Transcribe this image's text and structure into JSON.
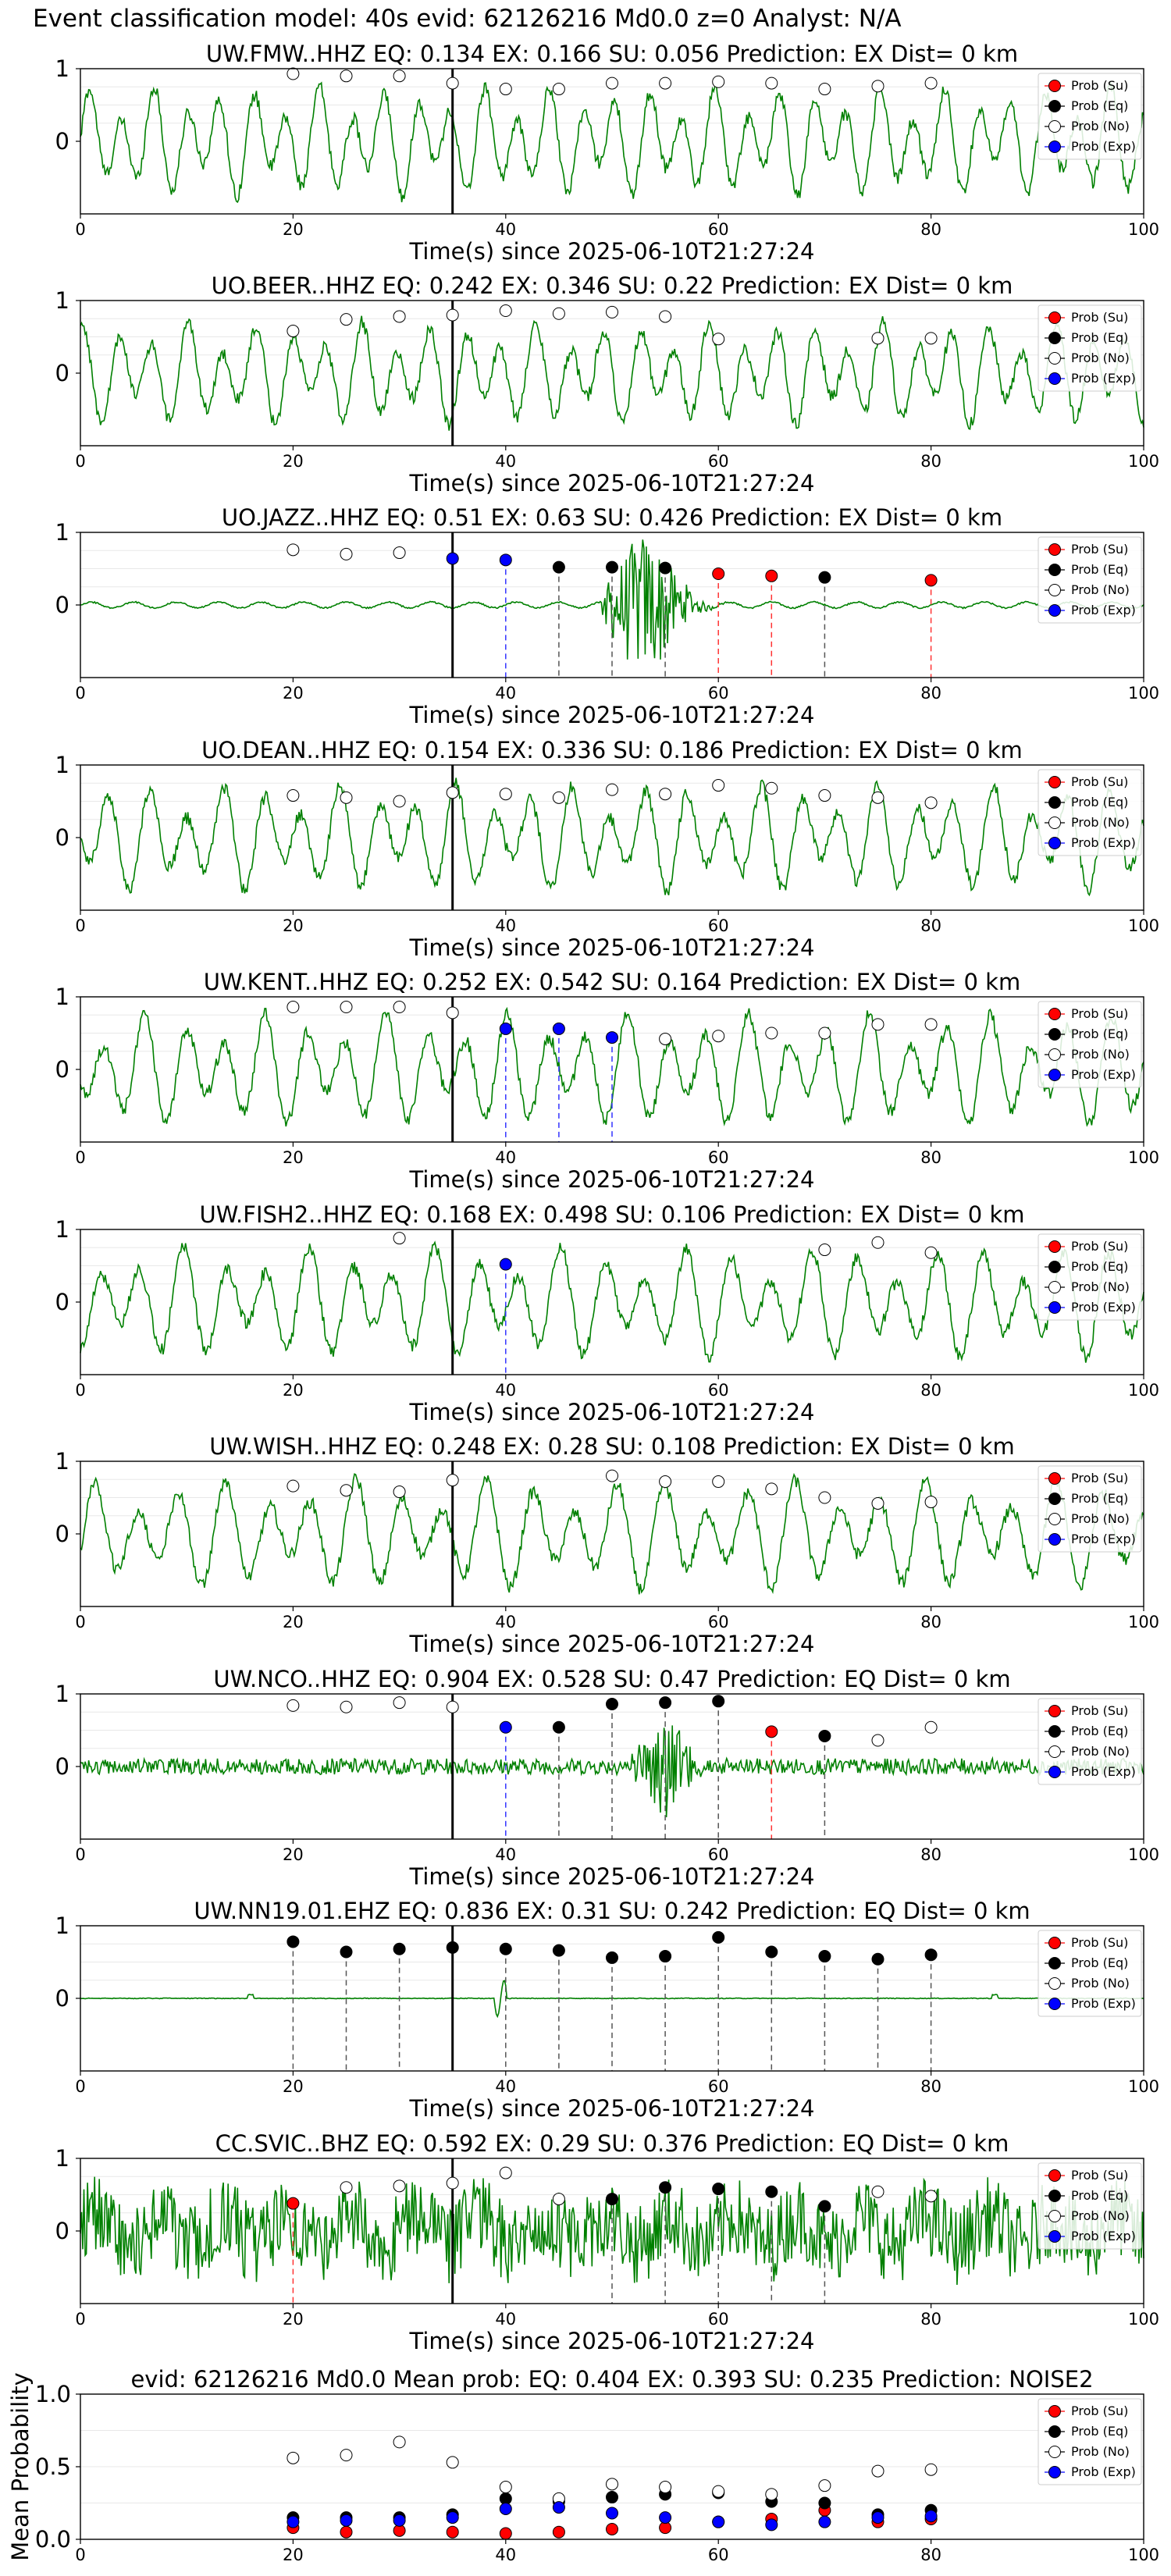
{
  "suptitle": "Event classification model: 40s evid: 62126216 Md0.0 z=0 Analyst: N/A",
  "chart_data": {
    "type": "line",
    "xlim": [
      0,
      100
    ],
    "waveform_ylim": [
      -1,
      1
    ],
    "x_ticks": [
      "0",
      "20",
      "40",
      "60",
      "80",
      "100"
    ],
    "x_tick_values": [
      0,
      20,
      40,
      60,
      80,
      100
    ],
    "waveform_y_ticks": [
      "0",
      "1"
    ],
    "waveform_y_tick_values": [
      0,
      1
    ],
    "xlabel": "Time(s) since 2025-06-10T21:27:24",
    "legend_labels": [
      "Prob (Su)",
      "Prob (Eq)",
      "Prob (No)",
      "Prob (Exp)"
    ],
    "legend_position": "top-right",
    "colors": {
      "waveform": "#008000",
      "su": "#ff0000",
      "eq": "#000000",
      "no": "#ffffff",
      "exp": "#0000ff",
      "su_line": "#ff3333",
      "eq_line": "#555555",
      "exp_line": "#3333ff",
      "origin": "#000000"
    },
    "origin_time": 35,
    "window_times": [
      20,
      25,
      30,
      35,
      40,
      45,
      50,
      55,
      60,
      65,
      70,
      75,
      80
    ],
    "stations": [
      {
        "title": "UW.FMW..HHZ   EQ: 0.134  EX: 0.166  SU: 0.056   Prediction: EX    Dist= 0 km",
        "style": "long",
        "amp": 0.8,
        "markers": [
          {
            "t": 20,
            "p": 0.93,
            "c": "no"
          },
          {
            "t": 25,
            "p": 0.9,
            "c": "no"
          },
          {
            "t": 30,
            "p": 0.9,
            "c": "no"
          },
          {
            "t": 35,
            "p": 0.8,
            "c": "no"
          },
          {
            "t": 40,
            "p": 0.72,
            "c": "no"
          },
          {
            "t": 45,
            "p": 0.72,
            "c": "no"
          },
          {
            "t": 50,
            "p": 0.8,
            "c": "no"
          },
          {
            "t": 55,
            "p": 0.8,
            "c": "no"
          },
          {
            "t": 60,
            "p": 0.82,
            "c": "no"
          },
          {
            "t": 65,
            "p": 0.8,
            "c": "no"
          },
          {
            "t": 70,
            "p": 0.72,
            "c": "no"
          },
          {
            "t": 75,
            "p": 0.76,
            "c": "no"
          },
          {
            "t": 80,
            "p": 0.8,
            "c": "no"
          }
        ]
      },
      {
        "title": "UO.BEER..HHZ   EQ: 0.242  EX: 0.346  SU: 0.22   Prediction: EX    Dist= 0 km",
        "style": "long",
        "amp": 0.75,
        "markers": [
          {
            "t": 20,
            "p": 0.58,
            "c": "no"
          },
          {
            "t": 25,
            "p": 0.74,
            "c": "no"
          },
          {
            "t": 30,
            "p": 0.78,
            "c": "no"
          },
          {
            "t": 35,
            "p": 0.8,
            "c": "no"
          },
          {
            "t": 40,
            "p": 0.86,
            "c": "no"
          },
          {
            "t": 45,
            "p": 0.82,
            "c": "no"
          },
          {
            "t": 50,
            "p": 0.84,
            "c": "no"
          },
          {
            "t": 55,
            "p": 0.78,
            "c": "no"
          },
          {
            "t": 60,
            "p": 0.47,
            "c": "no"
          },
          {
            "t": 75,
            "p": 0.48,
            "c": "no"
          },
          {
            "t": 80,
            "p": 0.48,
            "c": "no"
          }
        ]
      },
      {
        "title": "UO.JAZZ..HHZ   EQ: 0.51  EX: 0.63  SU: 0.426   Prediction: EX    Dist= 0 km",
        "style": "quiet",
        "amp": 0.05,
        "markers": [
          {
            "t": 20,
            "p": 0.76,
            "c": "no"
          },
          {
            "t": 25,
            "p": 0.7,
            "c": "no"
          },
          {
            "t": 30,
            "p": 0.72,
            "c": "no"
          },
          {
            "t": 35,
            "p": 0.64,
            "c": "exp"
          },
          {
            "t": 40,
            "p": 0.62,
            "c": "exp"
          },
          {
            "t": 45,
            "p": 0.52,
            "c": "eq"
          },
          {
            "t": 50,
            "p": 0.52,
            "c": "eq"
          },
          {
            "t": 55,
            "p": 0.51,
            "c": "eq"
          },
          {
            "t": 60,
            "p": 0.43,
            "c": "su"
          },
          {
            "t": 65,
            "p": 0.4,
            "c": "su"
          },
          {
            "t": 70,
            "p": 0.38,
            "c": "eq"
          },
          {
            "t": 80,
            "p": 0.34,
            "c": "su"
          }
        ]
      },
      {
        "title": "UO.DEAN..HHZ   EQ: 0.154  EX: 0.336  SU: 0.186   Prediction: EX    Dist= 0 km",
        "style": "long",
        "amp": 0.78,
        "markers": [
          {
            "t": 20,
            "p": 0.58,
            "c": "no"
          },
          {
            "t": 25,
            "p": 0.55,
            "c": "no"
          },
          {
            "t": 30,
            "p": 0.5,
            "c": "no"
          },
          {
            "t": 35,
            "p": 0.62,
            "c": "no"
          },
          {
            "t": 40,
            "p": 0.6,
            "c": "no"
          },
          {
            "t": 45,
            "p": 0.55,
            "c": "no"
          },
          {
            "t": 50,
            "p": 0.66,
            "c": "no"
          },
          {
            "t": 55,
            "p": 0.6,
            "c": "no"
          },
          {
            "t": 60,
            "p": 0.72,
            "c": "no"
          },
          {
            "t": 65,
            "p": 0.68,
            "c": "no"
          },
          {
            "t": 70,
            "p": 0.58,
            "c": "no"
          },
          {
            "t": 75,
            "p": 0.55,
            "c": "no"
          },
          {
            "t": 80,
            "p": 0.48,
            "c": "no"
          }
        ]
      },
      {
        "title": "UW.KENT..HHZ   EQ: 0.252  EX: 0.542  SU: 0.164   Prediction: EX    Dist= 0 km",
        "style": "long",
        "amp": 0.82,
        "markers": [
          {
            "t": 20,
            "p": 0.86,
            "c": "no"
          },
          {
            "t": 25,
            "p": 0.86,
            "c": "no"
          },
          {
            "t": 30,
            "p": 0.86,
            "c": "no"
          },
          {
            "t": 35,
            "p": 0.78,
            "c": "no"
          },
          {
            "t": 40,
            "p": 0.56,
            "c": "exp"
          },
          {
            "t": 45,
            "p": 0.56,
            "c": "exp"
          },
          {
            "t": 50,
            "p": 0.44,
            "c": "exp"
          },
          {
            "t": 55,
            "p": 0.42,
            "c": "no"
          },
          {
            "t": 60,
            "p": 0.46,
            "c": "no"
          },
          {
            "t": 65,
            "p": 0.5,
            "c": "no"
          },
          {
            "t": 70,
            "p": 0.5,
            "c": "no"
          },
          {
            "t": 75,
            "p": 0.62,
            "c": "no"
          },
          {
            "t": 80,
            "p": 0.62,
            "c": "no"
          }
        ]
      },
      {
        "title": "UW.FISH2..HHZ   EQ: 0.168  EX: 0.498  SU: 0.106   Prediction: EX    Dist= 0 km",
        "style": "long",
        "amp": 0.8,
        "markers": [
          {
            "t": 30,
            "p": 0.88,
            "c": "no"
          },
          {
            "t": 40,
            "p": 0.52,
            "c": "exp"
          },
          {
            "t": 70,
            "p": 0.72,
            "c": "no"
          },
          {
            "t": 75,
            "p": 0.82,
            "c": "no"
          },
          {
            "t": 80,
            "p": 0.68,
            "c": "no"
          }
        ]
      },
      {
        "title": "UW.WISH..HHZ   EQ: 0.248  EX: 0.28  SU: 0.108   Prediction: EX    Dist= 0 km",
        "style": "long",
        "amp": 0.8,
        "markers": [
          {
            "t": 20,
            "p": 0.66,
            "c": "no"
          },
          {
            "t": 25,
            "p": 0.6,
            "c": "no"
          },
          {
            "t": 30,
            "p": 0.58,
            "c": "no"
          },
          {
            "t": 35,
            "p": 0.74,
            "c": "no"
          },
          {
            "t": 50,
            "p": 0.8,
            "c": "no"
          },
          {
            "t": 55,
            "p": 0.72,
            "c": "no"
          },
          {
            "t": 60,
            "p": 0.72,
            "c": "no"
          },
          {
            "t": 65,
            "p": 0.62,
            "c": "no"
          },
          {
            "t": 70,
            "p": 0.5,
            "c": "no"
          },
          {
            "t": 75,
            "p": 0.42,
            "c": "no"
          },
          {
            "t": 80,
            "p": 0.44,
            "c": "no"
          }
        ]
      },
      {
        "title": "UW.NCO..HHZ   EQ: 0.904  EX: 0.528  SU: 0.47   Prediction: EQ    Dist= 0 km",
        "style": "noise_event",
        "amp": 0.15,
        "markers": [
          {
            "t": 20,
            "p": 0.84,
            "c": "no"
          },
          {
            "t": 25,
            "p": 0.82,
            "c": "no"
          },
          {
            "t": 30,
            "p": 0.88,
            "c": "no"
          },
          {
            "t": 35,
            "p": 0.82,
            "c": "no"
          },
          {
            "t": 40,
            "p": 0.54,
            "c": "exp"
          },
          {
            "t": 45,
            "p": 0.54,
            "c": "eq"
          },
          {
            "t": 50,
            "p": 0.86,
            "c": "eq"
          },
          {
            "t": 55,
            "p": 0.88,
            "c": "eq"
          },
          {
            "t": 60,
            "p": 0.9,
            "c": "eq"
          },
          {
            "t": 65,
            "p": 0.48,
            "c": "su"
          },
          {
            "t": 70,
            "p": 0.42,
            "c": "eq"
          },
          {
            "t": 75,
            "p": 0.36,
            "c": "no"
          },
          {
            "t": 80,
            "p": 0.54,
            "c": "no"
          }
        ]
      },
      {
        "title": "UW.NN19.01.EHZ   EQ: 0.836  EX: 0.31  SU: 0.242   Prediction: EQ    Dist= 0 km",
        "style": "flat",
        "amp": 0.01,
        "markers": [
          {
            "t": 20,
            "p": 0.78,
            "c": "eq"
          },
          {
            "t": 25,
            "p": 0.64,
            "c": "eq"
          },
          {
            "t": 30,
            "p": 0.68,
            "c": "eq"
          },
          {
            "t": 35,
            "p": 0.7,
            "c": "eq"
          },
          {
            "t": 40,
            "p": 0.68,
            "c": "eq"
          },
          {
            "t": 45,
            "p": 0.66,
            "c": "eq"
          },
          {
            "t": 50,
            "p": 0.56,
            "c": "eq"
          },
          {
            "t": 55,
            "p": 0.58,
            "c": "eq"
          },
          {
            "t": 60,
            "p": 0.84,
            "c": "eq"
          },
          {
            "t": 65,
            "p": 0.64,
            "c": "eq"
          },
          {
            "t": 70,
            "p": 0.58,
            "c": "eq"
          },
          {
            "t": 75,
            "p": 0.54,
            "c": "eq"
          },
          {
            "t": 80,
            "p": 0.6,
            "c": "eq"
          }
        ]
      },
      {
        "title": "CC.SVIC..BHZ   EQ: 0.592  EX: 0.29  SU: 0.376   Prediction: EQ    Dist= 0 km",
        "style": "noisy",
        "amp": 0.6,
        "markers": [
          {
            "t": 20,
            "p": 0.38,
            "c": "su"
          },
          {
            "t": 25,
            "p": 0.6,
            "c": "no"
          },
          {
            "t": 30,
            "p": 0.62,
            "c": "no"
          },
          {
            "t": 35,
            "p": 0.66,
            "c": "no"
          },
          {
            "t": 40,
            "p": 0.8,
            "c": "no"
          },
          {
            "t": 45,
            "p": 0.44,
            "c": "no"
          },
          {
            "t": 50,
            "p": 0.44,
            "c": "eq"
          },
          {
            "t": 55,
            "p": 0.6,
            "c": "eq"
          },
          {
            "t": 60,
            "p": 0.58,
            "c": "eq"
          },
          {
            "t": 65,
            "p": 0.54,
            "c": "eq"
          },
          {
            "t": 70,
            "p": 0.34,
            "c": "eq"
          },
          {
            "t": 75,
            "p": 0.54,
            "c": "no"
          },
          {
            "t": 80,
            "p": 0.48,
            "c": "no"
          }
        ]
      }
    ],
    "mean_panel": {
      "title": "evid: 62126216   Md0.0   Mean prob:   EQ: 0.404  EX: 0.393  SU: 0.235   Prediction: NOISE2",
      "ylabel": "Mean Probability",
      "ylim": [
        0,
        1
      ],
      "y_ticks": [
        "0.0",
        "0.5",
        "1.0"
      ],
      "y_tick_values": [
        0,
        0.5,
        1
      ],
      "x_ticks": [
        "0",
        "20",
        "40",
        "60",
        "80",
        "100"
      ],
      "series": [
        {
          "name": "Prob (Su)",
          "key": "su",
          "x": [
            20,
            25,
            30,
            35,
            40,
            45,
            50,
            55,
            60,
            65,
            70,
            75,
            80
          ],
          "values": [
            0.08,
            0.05,
            0.06,
            0.05,
            0.04,
            0.05,
            0.07,
            0.08,
            0.12,
            0.14,
            0.2,
            0.12,
            0.14
          ]
        },
        {
          "name": "Prob (Eq)",
          "key": "eq",
          "x": [
            20,
            25,
            30,
            35,
            40,
            45,
            50,
            55,
            60,
            65,
            70,
            75,
            80
          ],
          "values": [
            0.15,
            0.15,
            0.15,
            0.17,
            0.28,
            0.26,
            0.29,
            0.31,
            0.32,
            0.26,
            0.25,
            0.17,
            0.2
          ]
        },
        {
          "name": "Prob (No)",
          "key": "no",
          "x": [
            20,
            25,
            30,
            35,
            40,
            45,
            50,
            55,
            60,
            65,
            70,
            75,
            80
          ],
          "values": [
            0.56,
            0.58,
            0.67,
            0.53,
            0.36,
            0.28,
            0.38,
            0.36,
            0.33,
            0.31,
            0.37,
            0.47,
            0.48
          ]
        },
        {
          "name": "Prob (Exp)",
          "key": "exp",
          "x": [
            20,
            25,
            30,
            35,
            40,
            45,
            50,
            55,
            60,
            65,
            70,
            75,
            80
          ],
          "values": [
            0.12,
            0.13,
            0.13,
            0.15,
            0.21,
            0.22,
            0.18,
            0.15,
            0.12,
            0.1,
            0.12,
            0.15,
            0.16
          ]
        }
      ]
    }
  }
}
